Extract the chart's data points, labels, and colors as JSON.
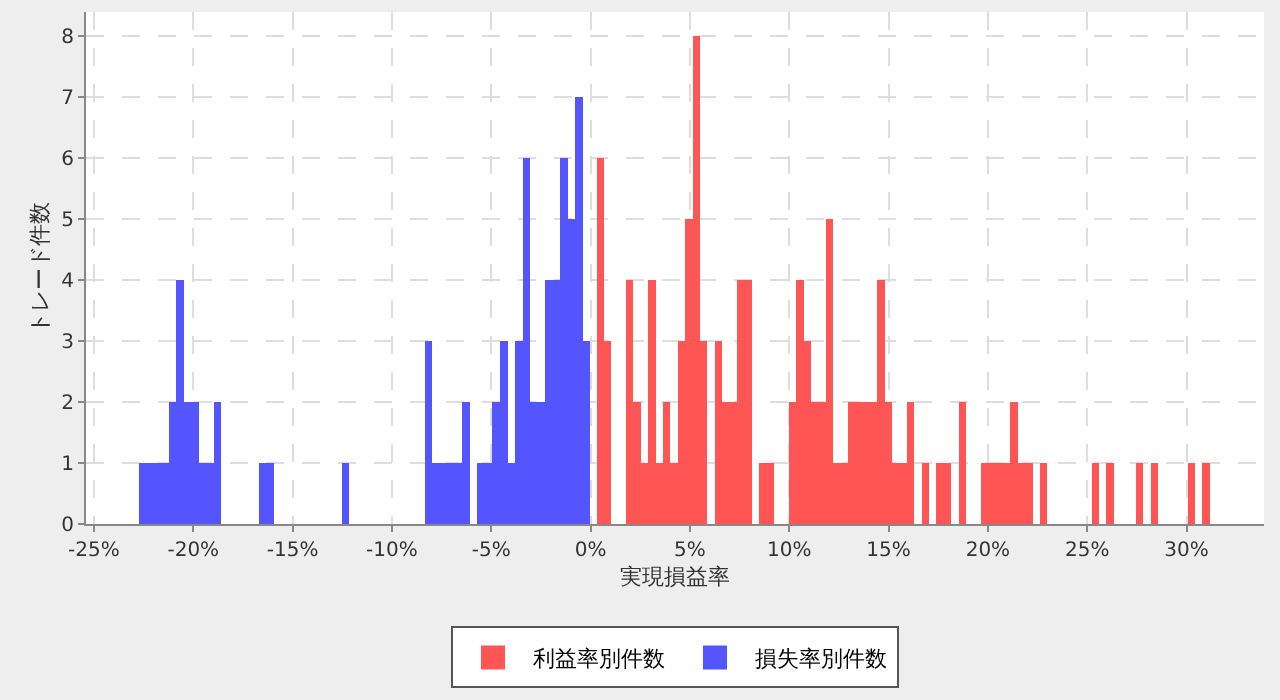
{
  "chart_data": {
    "type": "histogram",
    "xlabel": "実現損益率",
    "ylabel": "トレード件数",
    "xlim": [
      -25.4,
      33.9
    ],
    "ylim": [
      0,
      8.4
    ],
    "xticks": [
      {
        "value": -25,
        "label": "-25%"
      },
      {
        "value": -20,
        "label": "-20%"
      },
      {
        "value": -15,
        "label": "-15%"
      },
      {
        "value": -10,
        "label": "-10%"
      },
      {
        "value": -5,
        "label": "-5%"
      },
      {
        "value": 0,
        "label": "0%"
      },
      {
        "value": 5,
        "label": "5%"
      },
      {
        "value": 10,
        "label": "10%"
      },
      {
        "value": 15,
        "label": "15%"
      },
      {
        "value": 20,
        "label": "20%"
      },
      {
        "value": 25,
        "label": "25%"
      },
      {
        "value": 30,
        "label": "30%"
      }
    ],
    "yticks": [
      0,
      1,
      2,
      3,
      4,
      5,
      6,
      7,
      8
    ],
    "grid": true,
    "legend": "bottom",
    "bins": [
      -22.75,
      -22.37,
      -21.99,
      -21.61,
      -21.23,
      -20.86,
      -20.48,
      -20.1,
      -19.72,
      -19.34,
      -18.96,
      -18.58,
      -16.69,
      -16.31,
      -15.93,
      -12.52,
      -12.14,
      -8.35,
      -7.97,
      -7.59,
      -7.21,
      -6.83,
      -6.45,
      -6.07,
      -5.7,
      -5.32,
      -4.94,
      -4.56,
      -4.18,
      -3.8,
      -3.42,
      -3.04,
      -2.66,
      -2.28,
      -1.91,
      -1.53,
      -1.15,
      -0.77,
      -0.39,
      -0.01,
      0.3,
      0.67,
      1.04,
      1.79,
      2.16,
      2.53,
      2.9,
      3.28,
      3.65,
      4.02,
      4.39,
      4.76,
      5.14,
      5.51,
      5.88,
      6.25,
      6.62,
      7.0,
      7.37,
      7.74,
      8.11,
      8.48,
      8.86,
      9.23,
      9.97,
      10.34,
      10.72,
      11.09,
      11.46,
      11.83,
      12.2,
      12.58,
      12.95,
      13.32,
      13.69,
      14.06,
      14.44,
      14.81,
      15.18,
      15.55,
      15.92,
      16.3,
      16.67,
      17.04,
      17.41,
      17.78,
      18.16,
      18.53,
      18.9,
      19.64,
      20.02,
      20.39,
      20.76,
      21.13,
      21.5,
      21.88,
      22.25,
      22.62,
      22.99,
      25.22,
      25.6,
      25.97,
      26.34,
      27.46,
      27.83,
      28.2,
      28.57,
      30.06,
      30.43,
      30.8,
      31.18
    ],
    "series": [
      {
        "name": "利益率別件数",
        "color": "#ff5555",
        "values": [
          null,
          null,
          null,
          null,
          null,
          null,
          null,
          null,
          null,
          null,
          null,
          null,
          null,
          null,
          null,
          null,
          null,
          null,
          null,
          null,
          null,
          null,
          null,
          null,
          null,
          null,
          null,
          null,
          null,
          null,
          null,
          null,
          null,
          null,
          null,
          null,
          null,
          null,
          null,
          null,
          6,
          3,
          0,
          4,
          2,
          1,
          4,
          1,
          2,
          1,
          3,
          5,
          8,
          3,
          0,
          3,
          2,
          2,
          4,
          4,
          0,
          1,
          1,
          0,
          2,
          4,
          3,
          2,
          2,
          5,
          1,
          1,
          2,
          2,
          2,
          2,
          4,
          2,
          1,
          1,
          2,
          0,
          1,
          0,
          1,
          1,
          0,
          2,
          0,
          1,
          1,
          1,
          1,
          2,
          1,
          1,
          0,
          1,
          0,
          1,
          0,
          1,
          0,
          1,
          0,
          1,
          0,
          1,
          0,
          1
        ]
      },
      {
        "name": "損失率別件数",
        "color": "#5555ff",
        "values": [
          1,
          1,
          1,
          1,
          2,
          4,
          2,
          2,
          1,
          1,
          2,
          0,
          1,
          1,
          0,
          1,
          0,
          3,
          1,
          1,
          1,
          1,
          2,
          0,
          1,
          1,
          2,
          3,
          1,
          3,
          6,
          2,
          2,
          4,
          4,
          6,
          5,
          7,
          3,
          null,
          null,
          null,
          null,
          null,
          null,
          null,
          null,
          null,
          null,
          null,
          null,
          null,
          null,
          null,
          null,
          null,
          null,
          null,
          null,
          null,
          null,
          null,
          null,
          null,
          null,
          null,
          null,
          null,
          null,
          null,
          null,
          null,
          null,
          null,
          null,
          null,
          null,
          null,
          null,
          null,
          null,
          null,
          null,
          null,
          null,
          null,
          null,
          null,
          null,
          null,
          null,
          null,
          null,
          null,
          null,
          null,
          null,
          null,
          null,
          null,
          null,
          null,
          null,
          null,
          null,
          null,
          null,
          null,
          null,
          null
        ]
      }
    ]
  }
}
